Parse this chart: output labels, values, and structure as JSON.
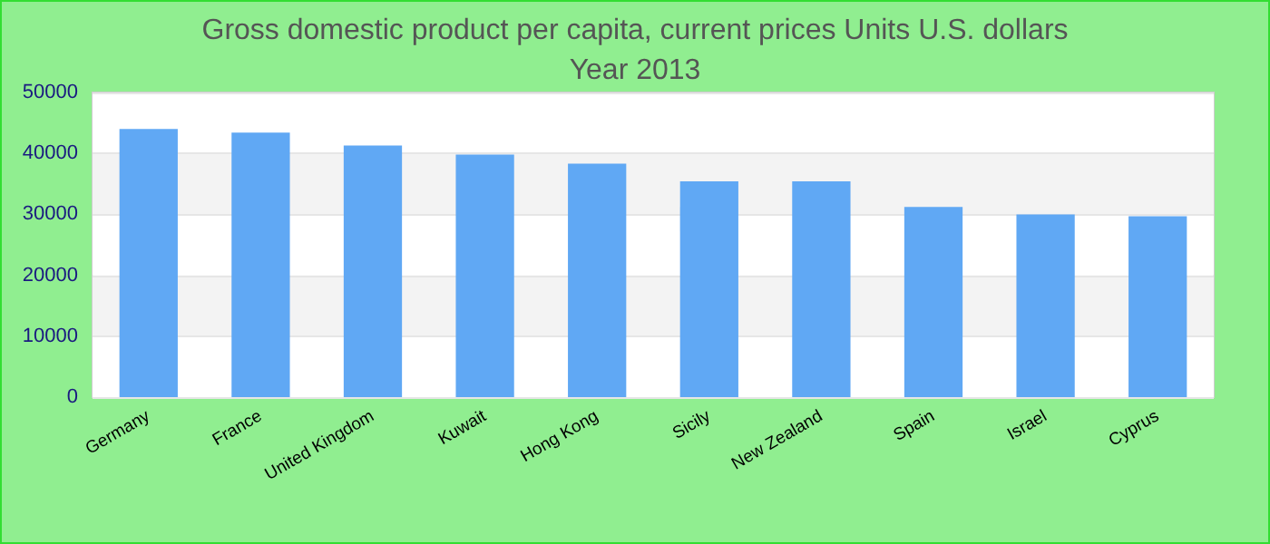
{
  "chart_data": {
    "type": "bar",
    "title": "Gross domestic product per capita, current prices Units U.S. dollars",
    "subtitle": "Year 2013",
    "categories": [
      "Germany",
      "France",
      "United Kingdom",
      "Kuwait",
      "Hong Kong",
      "Sicily",
      "New Zealand",
      "Spain",
      "Israel",
      "Cyprus"
    ],
    "values": [
      44000,
      43400,
      41300,
      39800,
      38300,
      35400,
      35400,
      31200,
      30000,
      29700
    ],
    "color": "#60a8f4",
    "ylim": [
      0,
      50000
    ],
    "yticks": [
      0,
      10000,
      20000,
      30000,
      40000,
      50000
    ],
    "grid": "y"
  }
}
